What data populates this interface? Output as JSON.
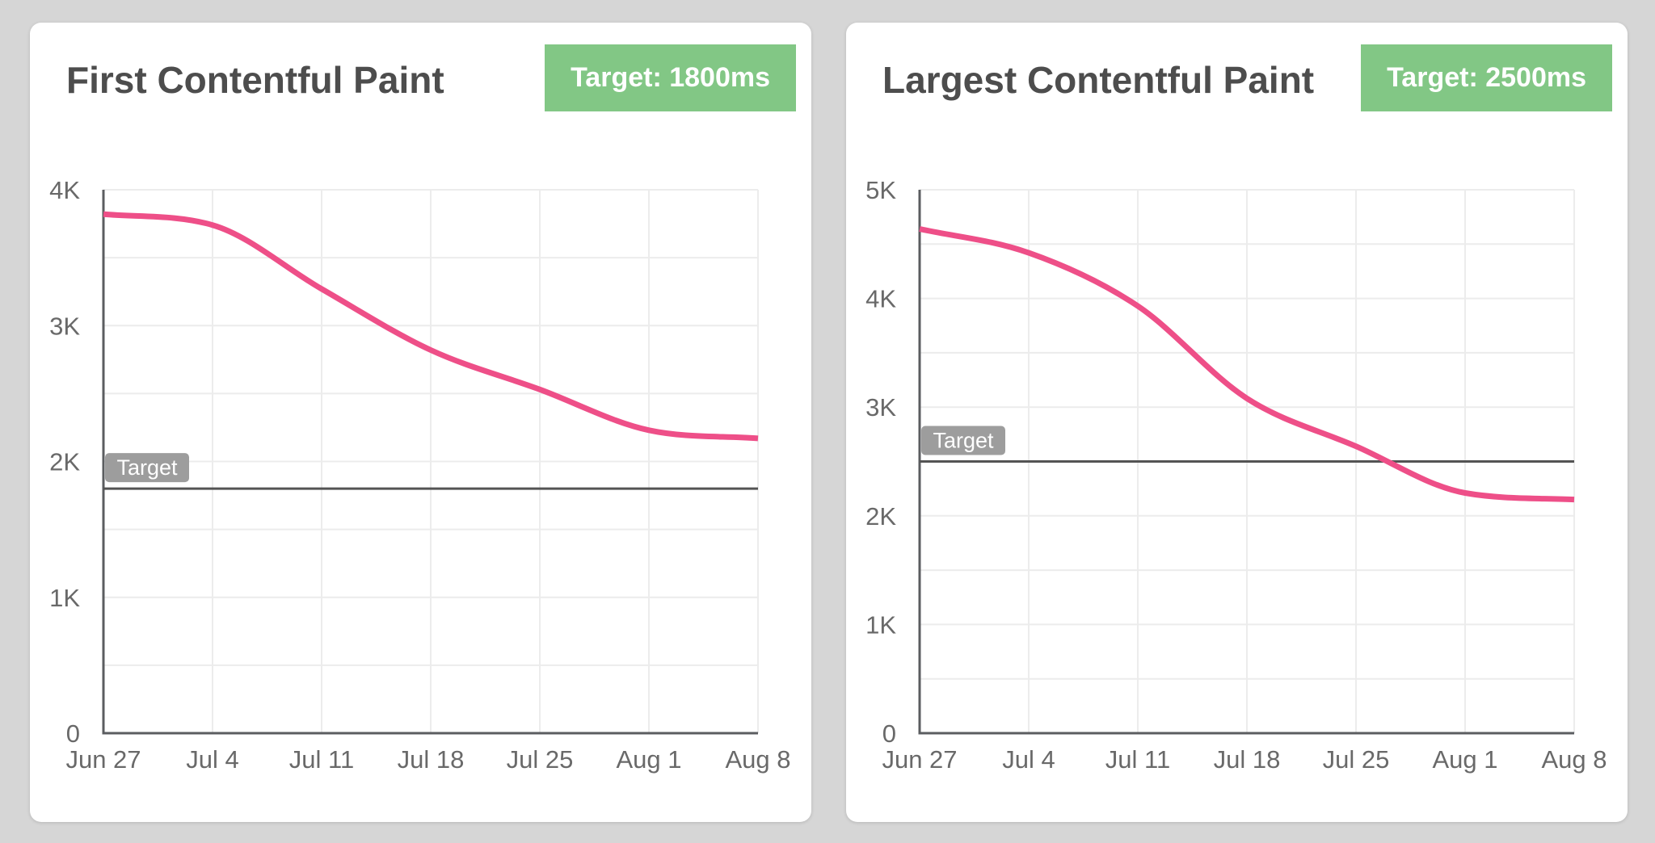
{
  "cards": [
    {
      "title": "First Contentful Paint",
      "badge": "Target: 1800ms"
    },
    {
      "title": "Largest Contentful Paint",
      "badge": "Target: 2500ms"
    }
  ],
  "chart_data": [
    {
      "type": "line",
      "title": "First Contentful Paint",
      "xlabel": "",
      "ylabel": "",
      "x": [
        "Jun 27",
        "Jul 4",
        "Jul 11",
        "Jul 18",
        "Jul 25",
        "Aug 1",
        "Aug 8"
      ],
      "series": [
        {
          "name": "fcp-line",
          "values": [
            3820,
            3740,
            3270,
            2820,
            2530,
            2230,
            2170
          ]
        }
      ],
      "target": 1800,
      "target_label": "Target",
      "ylim": [
        0,
        4000
      ],
      "ytick_step": 1000,
      "ytick_labels": [
        "0",
        "1K",
        "2K",
        "3K",
        "4K"
      ],
      "grid_step": 500,
      "grid": true,
      "legend": "none",
      "line_color": "#ee4f88"
    },
    {
      "type": "line",
      "title": "Largest Contentful Paint",
      "xlabel": "",
      "ylabel": "",
      "x": [
        "Jun 27",
        "Jul 4",
        "Jul 11",
        "Jul 18",
        "Jul 25",
        "Aug 1",
        "Aug 8"
      ],
      "series": [
        {
          "name": "lcp-line",
          "values": [
            4640,
            4420,
            3930,
            3080,
            2640,
            2210,
            2150
          ]
        }
      ],
      "target": 2500,
      "target_label": "Target",
      "ylim": [
        0,
        5000
      ],
      "ytick_step": 1000,
      "ytick_labels": [
        "0",
        "1K",
        "2K",
        "3K",
        "4K",
        "5K"
      ],
      "grid_step": 500,
      "grid": true,
      "legend": "none",
      "line_color": "#ee4f88"
    }
  ],
  "colors": {
    "background": "#d6d6d6",
    "card": "#ffffff",
    "title_text": "#4d4d4d",
    "badge_green": "#82c785",
    "badge_text": "#ffffff",
    "line_pink": "#ee4f88",
    "axis": "#5b5d60",
    "grid": "#ececec",
    "tick_text": "#696969",
    "chip_gray": "#9d9d9d",
    "chip_text": "#ffffff",
    "target_line": "#545454"
  }
}
